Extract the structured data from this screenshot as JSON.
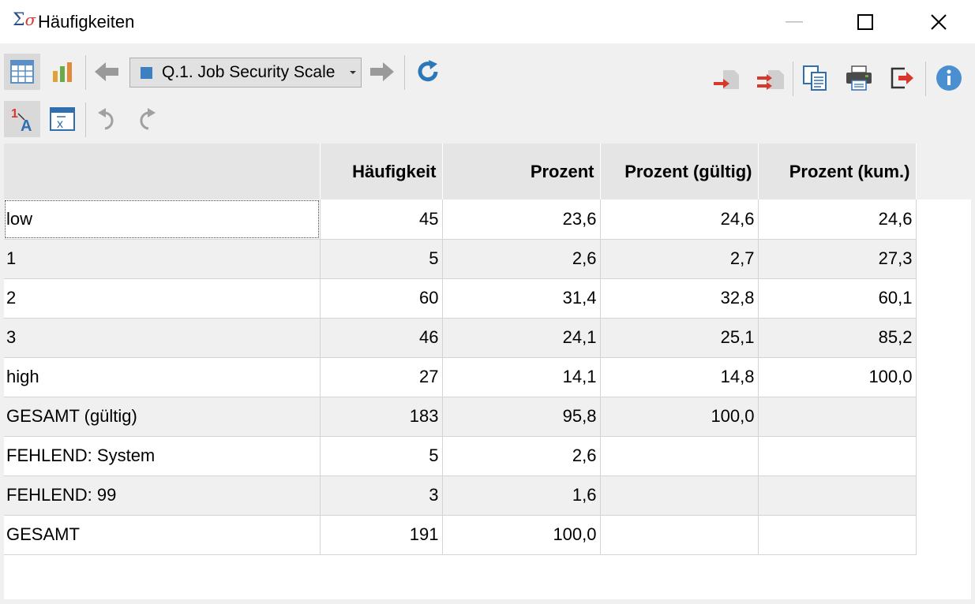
{
  "window": {
    "title": "Häufigkeiten",
    "app_icon": "sigma-sigma-icon"
  },
  "toolbar": {
    "variable_select": "Q.1. Job Security Scale",
    "variable_color": "#3d7fc1"
  },
  "table": {
    "headers": [
      "",
      "Häufigkeit",
      "Prozent",
      "Prozent (gültig)",
      "Prozent (kum.)"
    ],
    "rows": [
      [
        "low",
        "45",
        "23,6",
        "24,6",
        "24,6"
      ],
      [
        "1",
        "5",
        "2,6",
        "2,7",
        "27,3"
      ],
      [
        "2",
        "60",
        "31,4",
        "32,8",
        "60,1"
      ],
      [
        "3",
        "46",
        "24,1",
        "25,1",
        "85,2"
      ],
      [
        "high",
        "27",
        "14,1",
        "14,8",
        "100,0"
      ],
      [
        "GESAMT (gültig)",
        "183",
        "95,8",
        "100,0",
        ""
      ],
      [
        "FEHLEND: System",
        "5",
        "2,6",
        "",
        ""
      ],
      [
        "FEHLEND: 99",
        "3",
        "1,6",
        "",
        ""
      ],
      [
        "GESAMT",
        "191",
        "100,0",
        "",
        ""
      ]
    ]
  }
}
